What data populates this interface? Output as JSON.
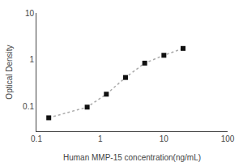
{
  "chart_data": {
    "type": "line",
    "xlabel": "Human MMP-15 concentration(ng/mL)",
    "ylabel": "Optical Density",
    "x": [
      0.156,
      0.625,
      1.25,
      2.5,
      5.0,
      10.0,
      20.0
    ],
    "series": [
      {
        "type": "line",
        "line_style": "dotted",
        "color": "#aaaaaa",
        "values": [
          0.058,
          0.098,
          0.185,
          0.42,
          0.85,
          1.25,
          1.75
        ]
      },
      {
        "type": "scatter",
        "marker": "square",
        "color": "#111111",
        "values": [
          0.058,
          0.098,
          0.185,
          0.42,
          0.85,
          1.25,
          1.75
        ]
      }
    ],
    "xlim": [
      0.1,
      100
    ],
    "ylim": [
      0.03,
      10
    ],
    "xticks": [
      0.1,
      1,
      10,
      100
    ],
    "yticks": [
      0.1,
      1,
      10
    ],
    "log": true,
    "grid": false
  }
}
